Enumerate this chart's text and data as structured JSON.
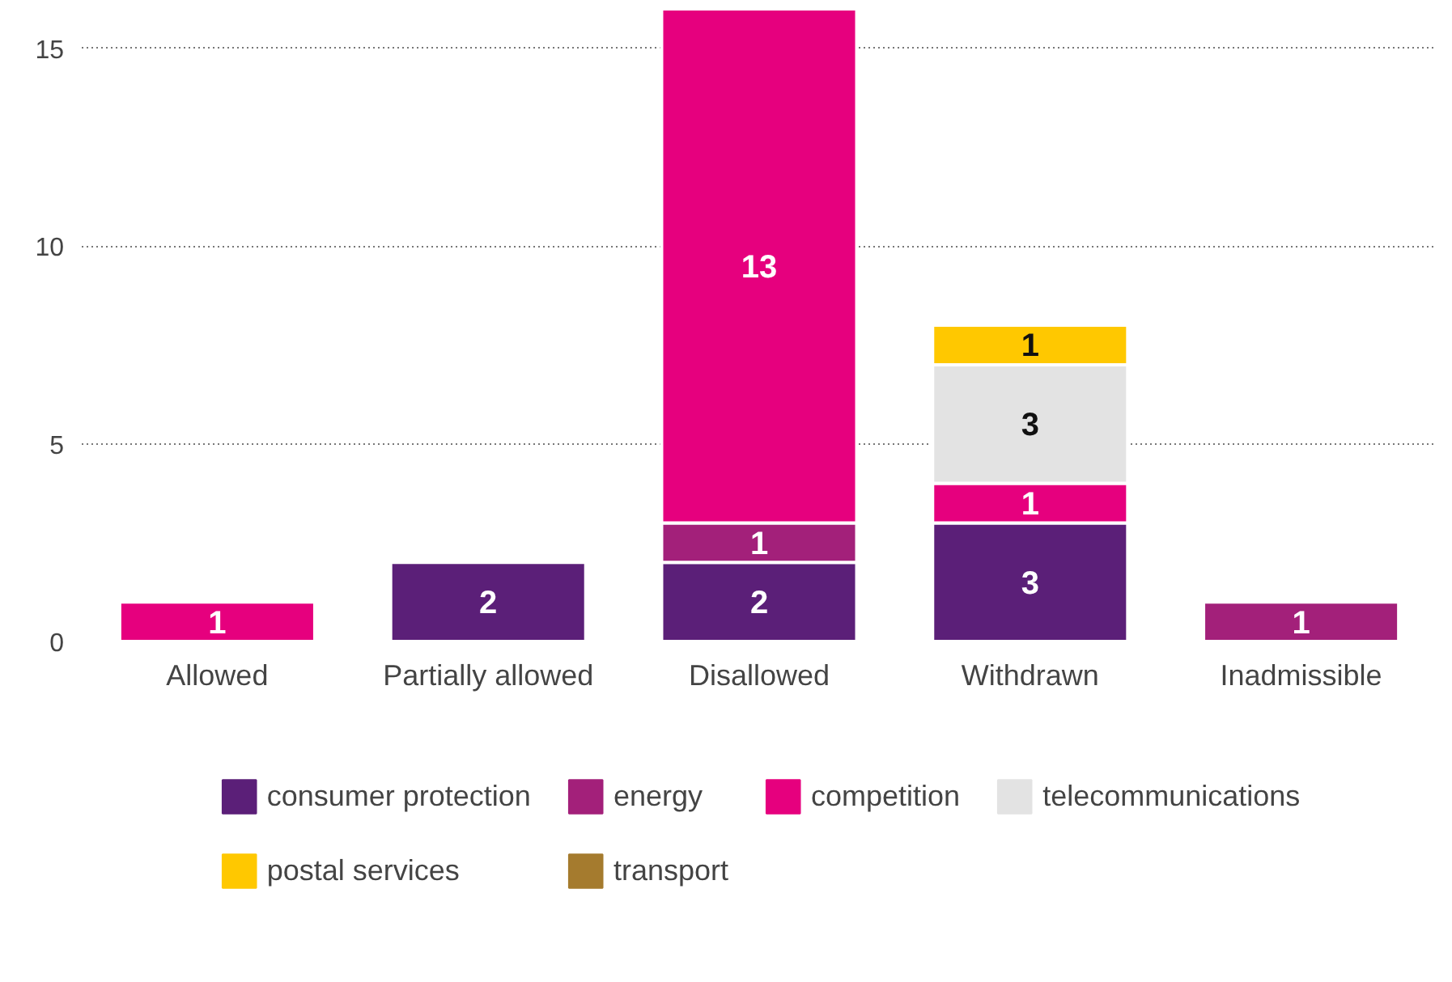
{
  "chart_data": {
    "type": "bar",
    "stacked": true,
    "categories": [
      "Allowed",
      "Partially allowed",
      "Disallowed",
      "Withdrawn",
      "Inadmissible"
    ],
    "series": [
      {
        "name": "consumer protection",
        "color": "#5b1f78",
        "values": [
          null,
          2,
          2,
          3,
          null
        ]
      },
      {
        "name": "energy",
        "color": "#a3207a",
        "values": [
          null,
          null,
          1,
          null,
          1
        ]
      },
      {
        "name": "competition",
        "color": "#e6007e",
        "values": [
          1,
          null,
          13,
          1,
          null
        ]
      },
      {
        "name": "telecommunications",
        "color": "#e3e3e3",
        "values": [
          null,
          null,
          null,
          3,
          null
        ]
      },
      {
        "name": "postal services",
        "color": "#ffc800",
        "values": [
          null,
          null,
          null,
          1,
          null
        ]
      },
      {
        "name": "transport",
        "color": "#a57b2e",
        "values": [
          null,
          null,
          null,
          null,
          null
        ]
      }
    ],
    "ylim": [
      0,
      16
    ],
    "yticks": [
      0,
      5,
      10,
      15
    ],
    "grid": "y",
    "legend": "bottom",
    "data_labels": true
  }
}
